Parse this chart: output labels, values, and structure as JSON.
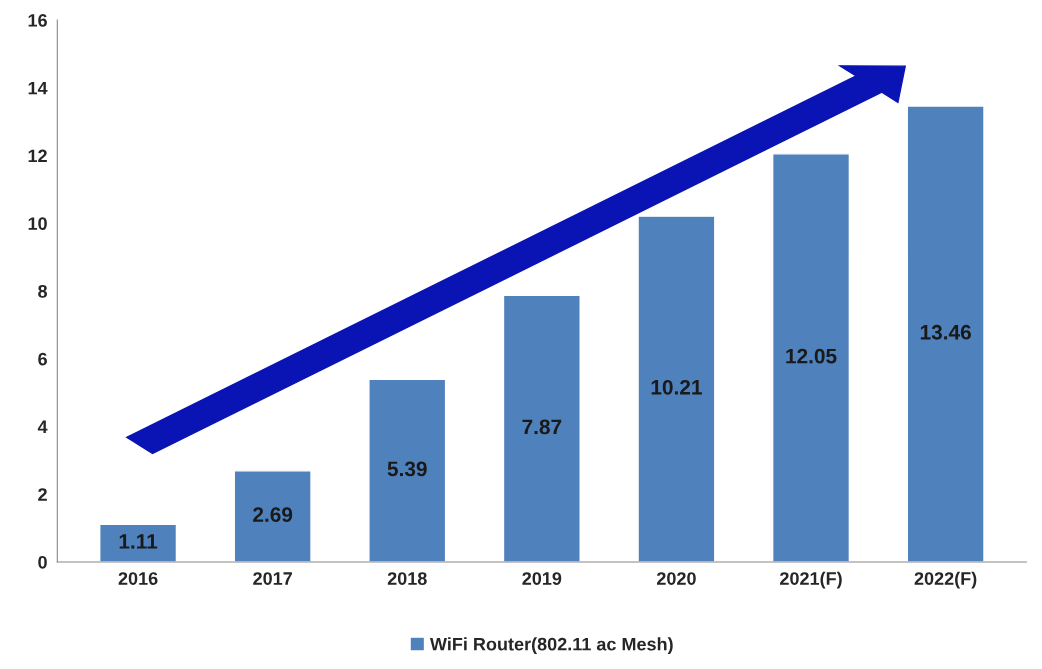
{
  "chart_data": {
    "type": "bar",
    "categories": [
      "2016",
      "2017",
      "2018",
      "2019",
      "2020",
      "2021(F)",
      "2022(F)"
    ],
    "series": [
      {
        "name": "WiFi Router(802.11 ac Mesh)",
        "color": "#4f81bd",
        "values": [
          1.11,
          2.69,
          5.39,
          7.87,
          10.21,
          12.05,
          13.46
        ]
      }
    ],
    "ylim": [
      0,
      16
    ],
    "yticks": [
      0,
      2,
      4,
      6,
      8,
      10,
      12,
      14,
      16
    ],
    "data_labels": true,
    "grid": false,
    "legend": "bottom"
  }
}
